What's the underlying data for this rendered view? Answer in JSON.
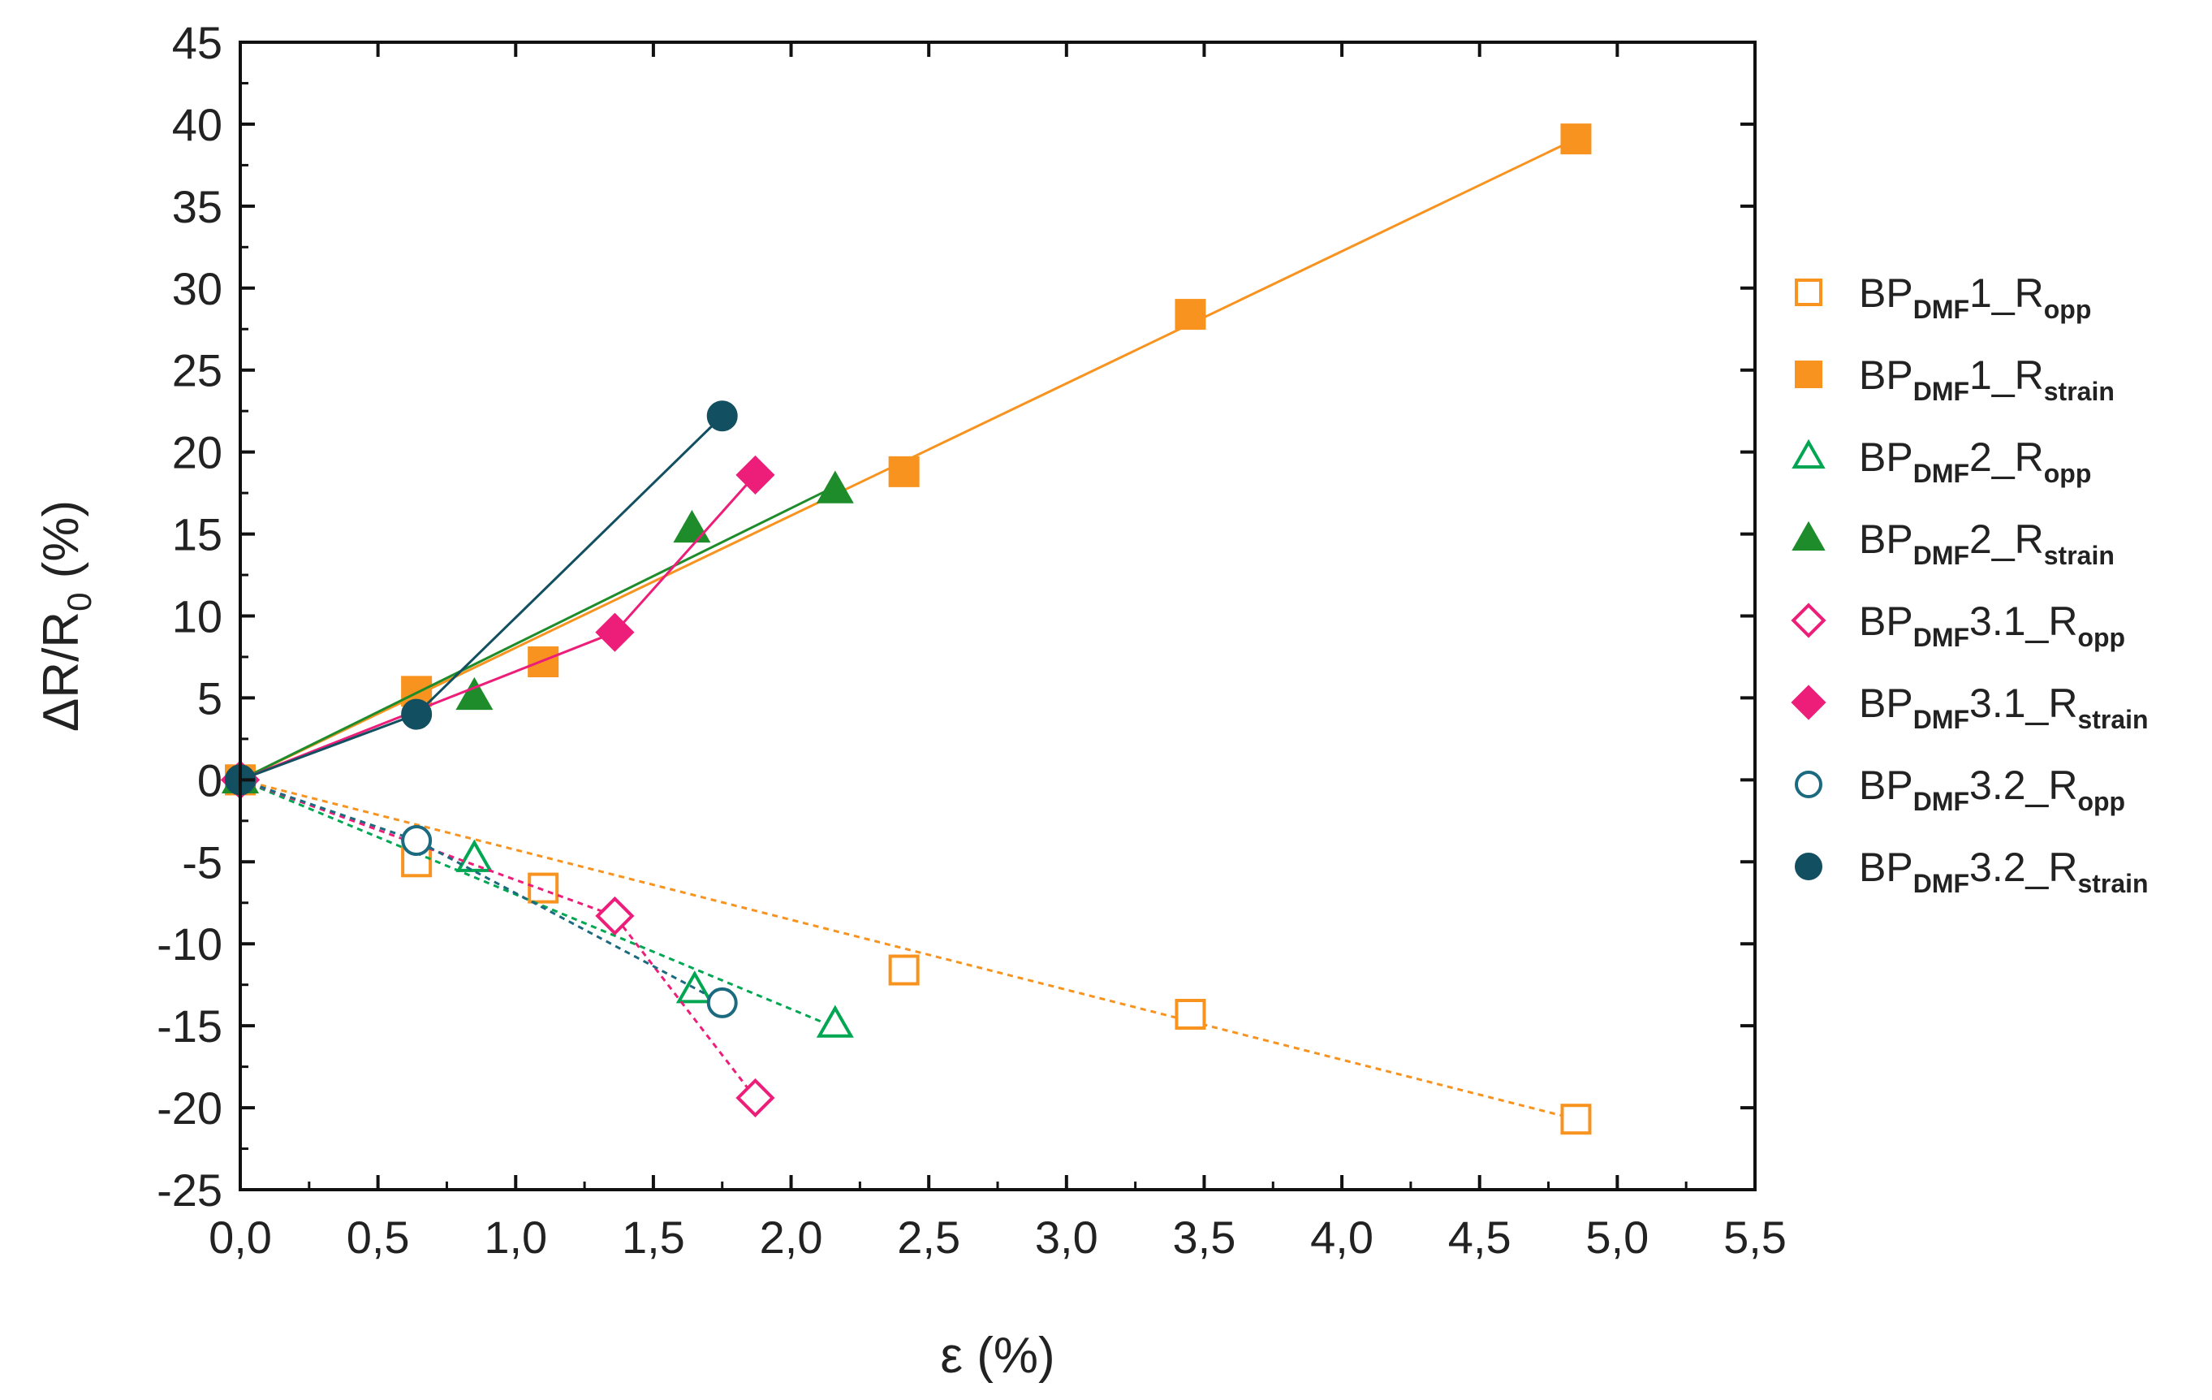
{
  "chart_data": {
    "type": "scatter",
    "title": "",
    "xlabel": "ε (%)",
    "ylabel": "ΔR/R0 (%)",
    "ylabel_parts": {
      "main": "ΔR/R",
      "sub": "0",
      "unit": " (%)"
    },
    "xlim": [
      0,
      5.5
    ],
    "ylim": [
      -25,
      45
    ],
    "xticks": [
      0,
      0.5,
      1,
      1.5,
      2,
      2.5,
      3,
      3.5,
      4,
      4.5,
      5,
      5.5
    ],
    "xtick_labels": [
      "0,0",
      "0,5",
      "1,0",
      "1,5",
      "2,0",
      "2,5",
      "3,0",
      "3,5",
      "4,0",
      "4,5",
      "5,0",
      "5,5"
    ],
    "yticks": [
      -25,
      -20,
      -15,
      -10,
      -5,
      0,
      5,
      10,
      15,
      20,
      25,
      30,
      35,
      40,
      45
    ],
    "ytick_labels": [
      "-25",
      "-20",
      "-15",
      "-10",
      "-5",
      "0",
      "5",
      "10",
      "15",
      "20",
      "25",
      "30",
      "35",
      "40",
      "45"
    ],
    "grid": false,
    "legend_position": "right",
    "series": [
      {
        "name": "BP_DMF1_R_opp",
        "label_main": "BP",
        "label_sub1": "DMF",
        "label_mid": "1_R",
        "label_sub2": "opp",
        "color": "#F7931E",
        "marker": "square",
        "filled": false,
        "line_style": "dotted",
        "x": [
          0,
          0.64,
          1.1,
          2.41,
          3.45,
          4.85
        ],
        "y": [
          0,
          -5.0,
          -6.6,
          -11.6,
          -14.3,
          -20.7
        ],
        "fit": [
          [
            0,
            0
          ],
          [
            4.85,
            -20.7
          ]
        ]
      },
      {
        "name": "BP_DMF1_R_strain",
        "label_main": "BP",
        "label_sub1": "DMF",
        "label_mid": "1_R",
        "label_sub2": "strain",
        "color": "#F7931E",
        "marker": "square",
        "filled": true,
        "line_style": "solid",
        "x": [
          0,
          0.64,
          1.1,
          2.41,
          3.45,
          4.85
        ],
        "y": [
          0,
          5.4,
          7.2,
          18.8,
          28.4,
          39.1
        ],
        "fit": [
          [
            0,
            0
          ],
          [
            4.85,
            39.1
          ]
        ]
      },
      {
        "name": "BP_DMF2_R_opp",
        "label_main": "BP",
        "label_sub1": "DMF",
        "label_mid": "2_R",
        "label_sub2": "opp",
        "color": "#00A651",
        "marker": "triangle",
        "filled": false,
        "line_style": "dotted",
        "x": [
          0,
          0.85,
          1.65,
          2.16
        ],
        "y": [
          0,
          -4.8,
          -12.8,
          -14.9
        ],
        "fit": [
          [
            0,
            0
          ],
          [
            2.16,
            -15.1
          ]
        ]
      },
      {
        "name": "BP_DMF2_R_strain",
        "label_main": "BP",
        "label_sub1": "DMF",
        "label_mid": "2_R",
        "label_sub2": "strain",
        "color": "#1E8C2A",
        "marker": "triangle",
        "filled": true,
        "line_style": "solid",
        "x": [
          0,
          0.85,
          1.64,
          2.16
        ],
        "y": [
          0,
          5.1,
          15.3,
          17.7
        ],
        "fit": [
          [
            0,
            0
          ],
          [
            2.16,
            17.9
          ]
        ]
      },
      {
        "name": "BP_DMF3.1_R_opp",
        "label_main": "BP",
        "label_sub1": "DMF",
        "label_mid": "3.1_R",
        "label_sub2": "opp",
        "color": "#EC1E79",
        "marker": "diamond",
        "filled": false,
        "line_style": "dotted",
        "x": [
          0,
          1.36,
          1.87
        ],
        "y": [
          0,
          -8.3,
          -19.4
        ],
        "fit": null
      },
      {
        "name": "BP_DMF3.1_R_strain",
        "label_main": "BP",
        "label_sub1": "DMF",
        "label_mid": "3.1_R",
        "label_sub2": "strain",
        "color": "#EC1E79",
        "marker": "diamond",
        "filled": true,
        "line_style": "solid",
        "x": [
          0,
          1.36,
          1.87
        ],
        "y": [
          0,
          9.0,
          18.6
        ],
        "fit": null
      },
      {
        "name": "BP_DMF3.2_R_opp",
        "label_main": "BP",
        "label_sub1": "DMF",
        "label_mid": "3.2_R",
        "label_sub2": "opp",
        "color": "#1B6A80",
        "marker": "circle",
        "filled": false,
        "line_style": "dotted",
        "x": [
          0,
          0.64,
          1.75
        ],
        "y": [
          0,
          -3.7,
          -13.6
        ],
        "fit": null
      },
      {
        "name": "BP_DMF3.2_R_strain",
        "label_main": "BP",
        "label_sub1": "DMF",
        "label_mid": "3.2_R",
        "label_sub2": "strain",
        "color": "#124F61",
        "marker": "circle",
        "filled": true,
        "line_style": "solid",
        "x": [
          0,
          0.64,
          1.75
        ],
        "y": [
          0,
          4.0,
          22.2
        ],
        "fit": null
      }
    ]
  }
}
